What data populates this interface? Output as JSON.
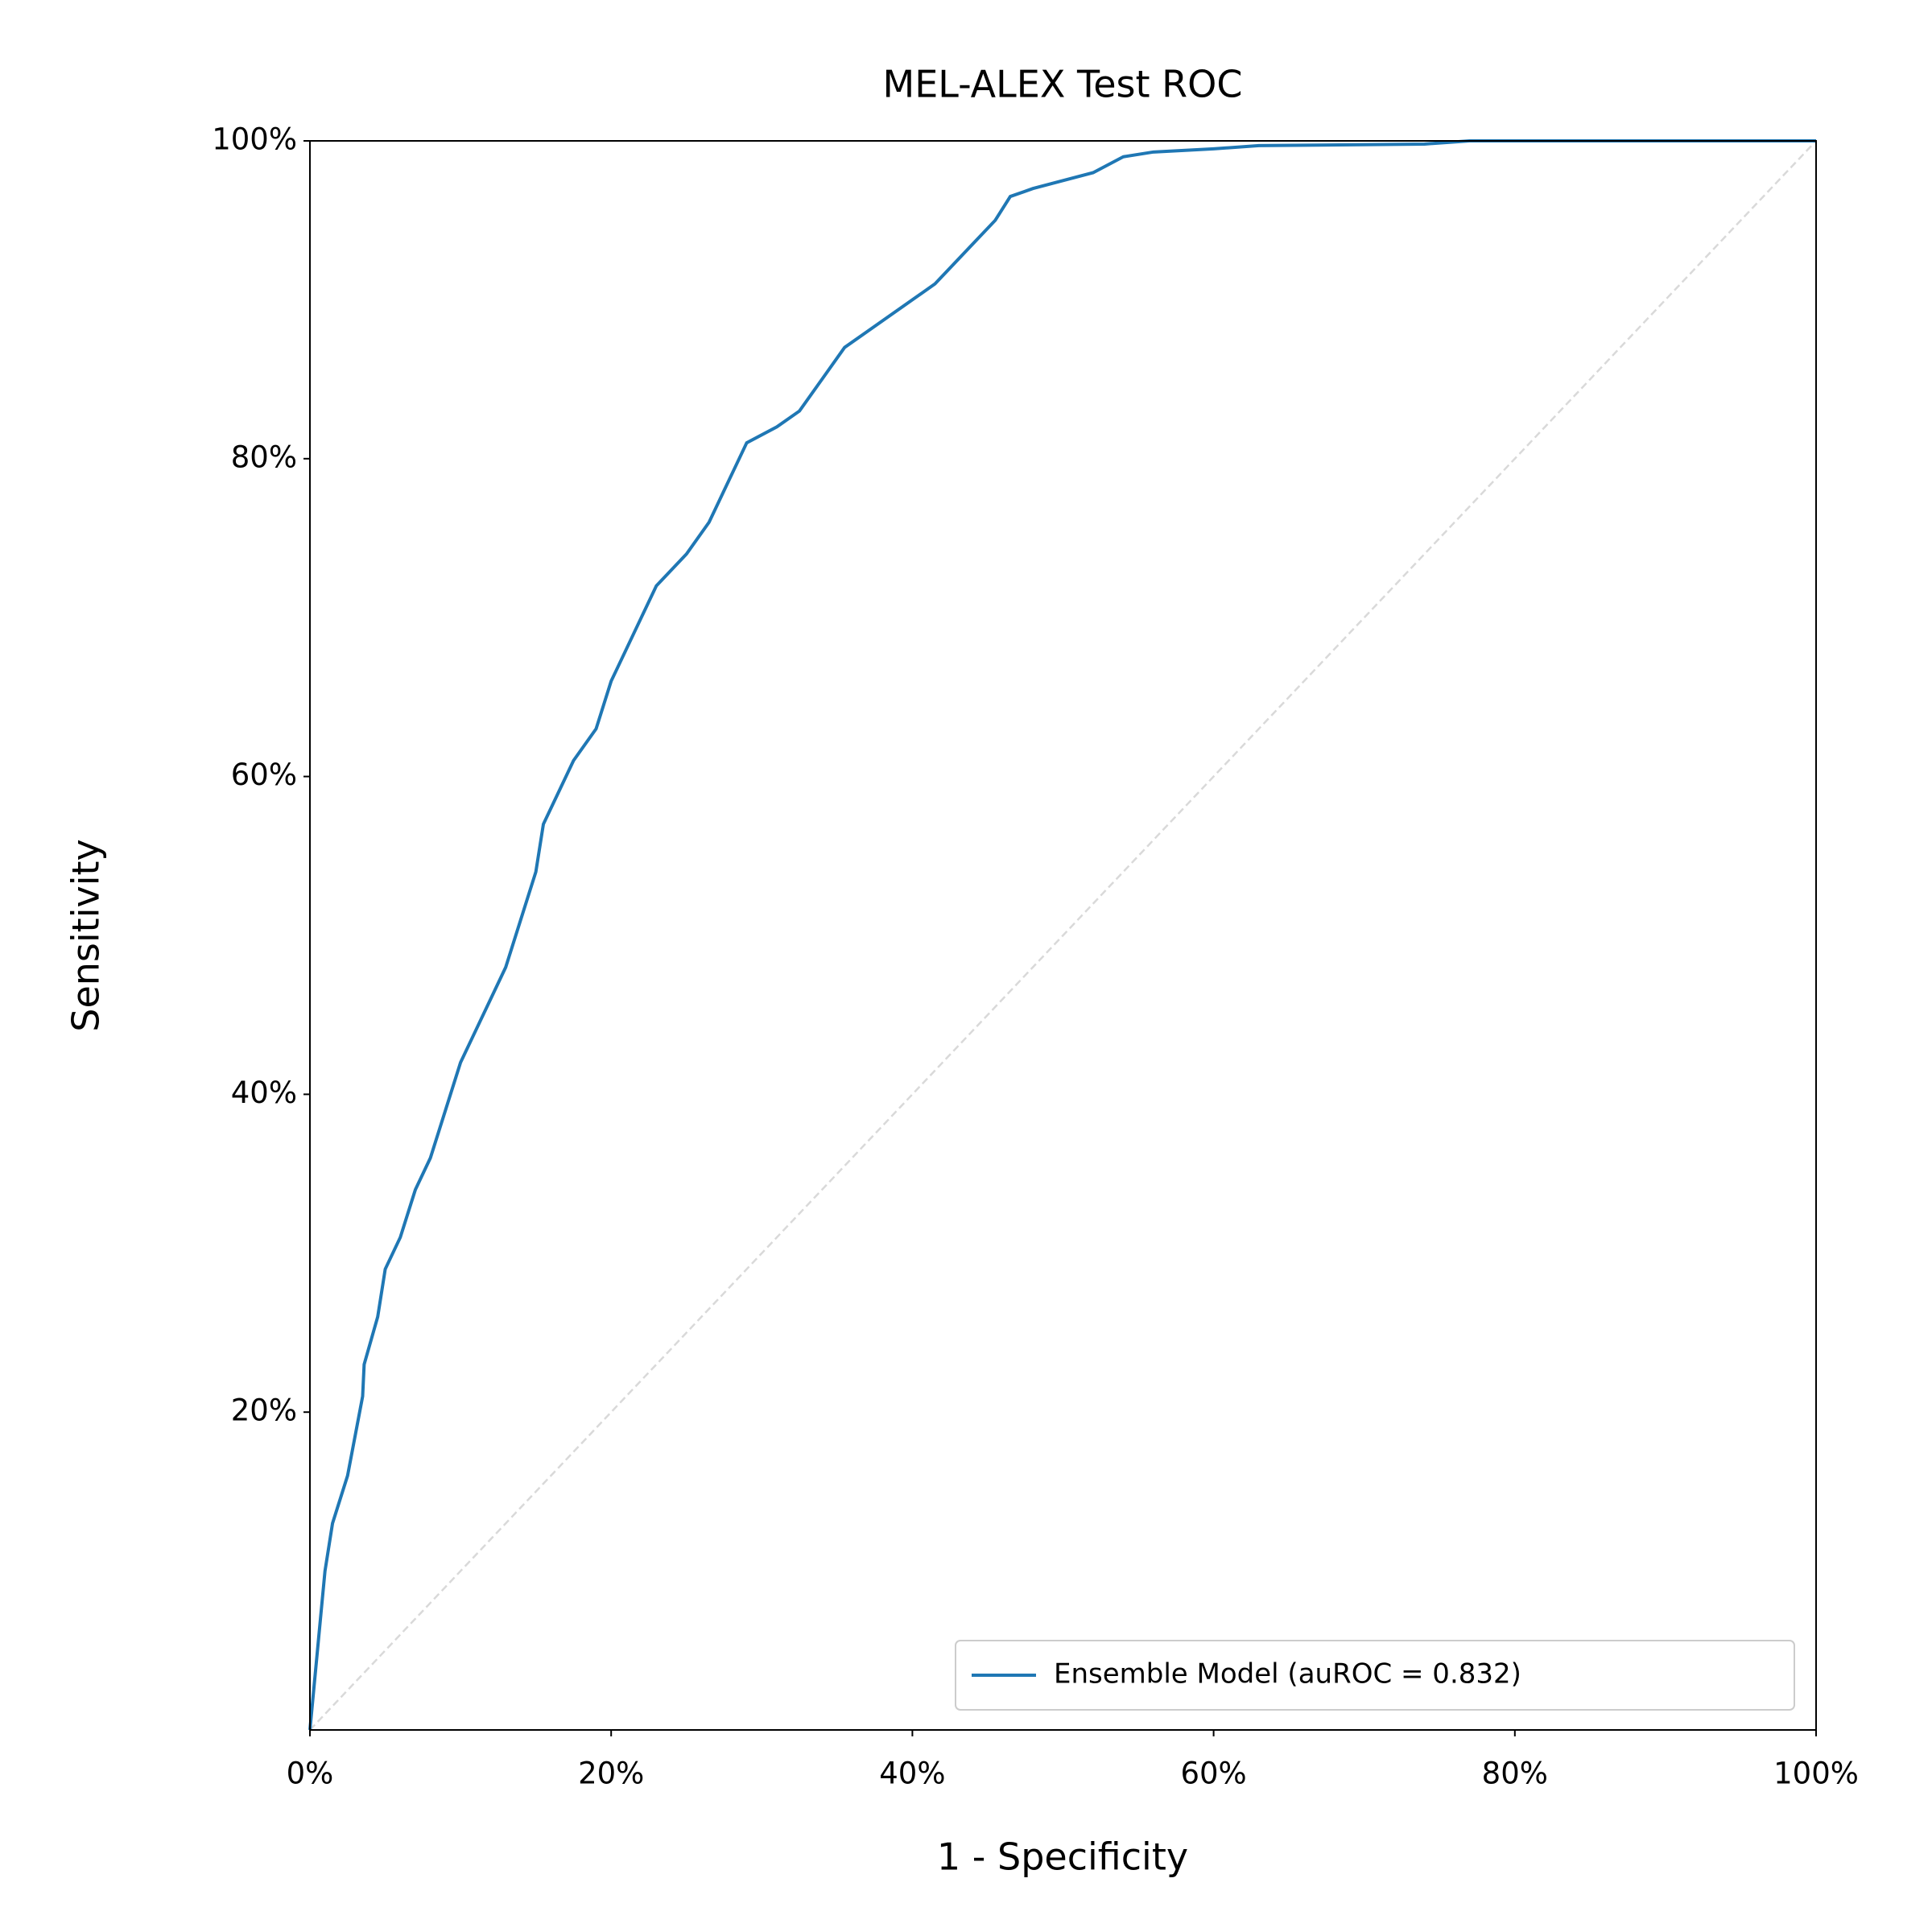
{
  "chart_data": {
    "type": "line",
    "title": "MEL-ALEX Test ROC",
    "x_label": "1 - Specificity",
    "y_label": "Sensitivity",
    "xlim": [
      0,
      100
    ],
    "ylim": [
      0,
      100
    ],
    "xticks": [
      {
        "value": 0,
        "label": "0%"
      },
      {
        "value": 20,
        "label": "20%"
      },
      {
        "value": 40,
        "label": "40%"
      },
      {
        "value": 60,
        "label": "60%"
      },
      {
        "value": 80,
        "label": "80%"
      },
      {
        "value": 100,
        "label": "100%"
      }
    ],
    "yticks": [
      {
        "value": 20,
        "label": "20%"
      },
      {
        "value": 40,
        "label": "40%"
      },
      {
        "value": 60,
        "label": "60%"
      },
      {
        "value": 80,
        "label": "80%"
      },
      {
        "value": 100,
        "label": "100%"
      }
    ],
    "legend": "lower right",
    "series": [
      {
        "name": "Ensemble Model (auROC = 0.832)",
        "color": "#1f77b4",
        "x": [
          0,
          0.2,
          0.7,
          1,
          1.5,
          2.5,
          3.5,
          3.6,
          4.5,
          5,
          6,
          7,
          8,
          9,
          10,
          11,
          12,
          13,
          14,
          15,
          15.5,
          16.5,
          17.5,
          19,
          20,
          21,
          22,
          23,
          24,
          25,
          26.5,
          27.5,
          28.5,
          29,
          31,
          32.5,
          34,
          35.5,
          37,
          38.5,
          40,
          41.5,
          42.5,
          44,
          45.5,
          46.5,
          48,
          50,
          52,
          54,
          56,
          60,
          63,
          74,
          77,
          100
        ],
        "values": [
          0,
          2,
          7,
          10,
          13,
          16,
          21,
          23,
          26,
          29,
          31,
          34,
          36,
          39,
          42,
          44,
          46,
          48,
          51,
          54,
          57,
          59,
          61,
          63,
          66,
          68,
          70,
          72,
          73,
          74,
          76,
          78,
          80,
          81,
          82,
          83,
          85,
          87,
          88,
          89,
          90,
          91,
          92,
          93.5,
          95,
          96.5,
          97,
          97.5,
          98,
          99,
          99.3,
          99.5,
          99.7,
          99.8,
          100,
          100
        ]
      }
    ]
  }
}
